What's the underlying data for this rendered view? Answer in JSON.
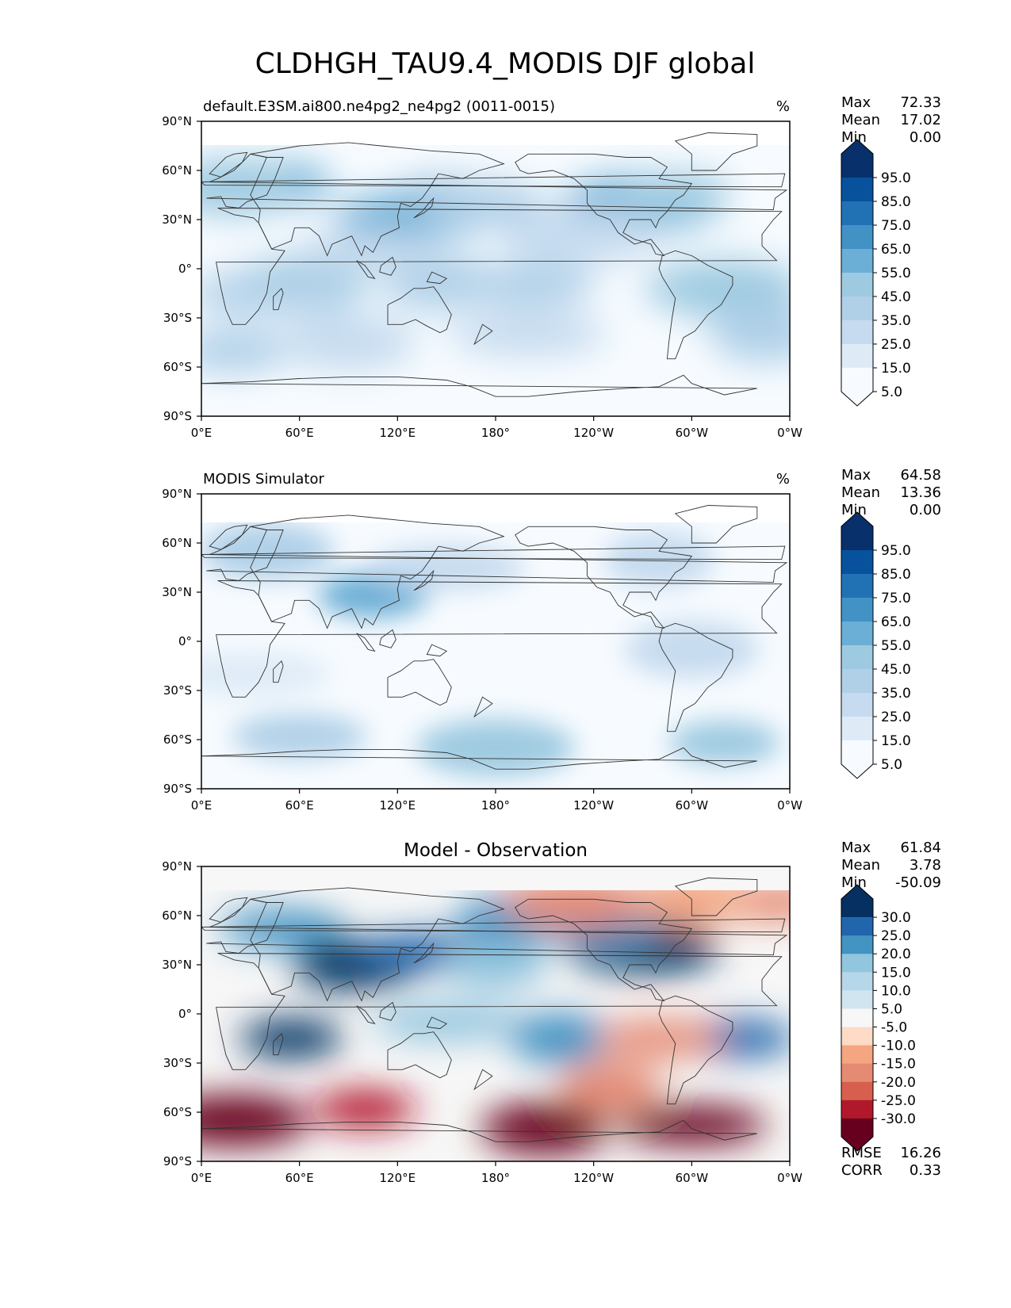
{
  "title": "CLDHGH_TAU9.4_MODIS DJF global",
  "colors": {
    "blues": [
      "#f7fbff",
      "#deebf7",
      "#c6dbef",
      "#b0d0e8",
      "#9ecae1",
      "#6baed6",
      "#4292c6",
      "#2171b5",
      "#08519c",
      "#08306b"
    ],
    "diff": [
      "#67001f",
      "#b2182b",
      "#d6604d",
      "#e58a73",
      "#f4a582",
      "#fddbc7",
      "#f7f7f7",
      "#d1e5f0",
      "#b6d6ea",
      "#92c5de",
      "#4393c3",
      "#2166ac",
      "#053061"
    ],
    "land_outline": "#333333"
  },
  "chart_data": [
    {
      "type": "heatmap",
      "panel": "test",
      "title_left": "default.E3SM.ai800.ne4pg2_ne4pg2 (0011-0015)",
      "units": "%",
      "stats": {
        "max_label": "Max",
        "max": "72.33",
        "mean_label": "Mean",
        "mean": "17.02",
        "min_label": "Min",
        "min": "0.00"
      },
      "levels": [
        "95.0",
        "85.0",
        "75.0",
        "65.0",
        "55.0",
        "45.0",
        "35.0",
        "25.0",
        "15.0",
        "5.0"
      ],
      "x_ticks": [
        "0°E",
        "60°E",
        "120°E",
        "180°",
        "120°W",
        "60°W",
        "0°W"
      ],
      "y_ticks": [
        "90°N",
        "60°N",
        "30°N",
        "0°",
        "30°S",
        "60°S",
        "90°S"
      ],
      "xlim": [
        0,
        360
      ],
      "ylim": [
        -90,
        90
      ],
      "regions": [
        {
          "lon": 45,
          "lat": 52,
          "value": 50
        },
        {
          "lon": 20,
          "lat": 50,
          "value": 35
        },
        {
          "lon": 130,
          "lat": 32,
          "value": 45
        },
        {
          "lon": 150,
          "lat": 38,
          "value": 45
        },
        {
          "lon": 170,
          "lat": 40,
          "value": 32
        },
        {
          "lon": 270,
          "lat": 40,
          "value": 45
        },
        {
          "lon": 290,
          "lat": 45,
          "value": 35
        },
        {
          "lon": 60,
          "lat": -10,
          "value": 35
        },
        {
          "lon": 40,
          "lat": -15,
          "value": 25
        },
        {
          "lon": 145,
          "lat": -8,
          "value": 25
        },
        {
          "lon": 200,
          "lat": -10,
          "value": 30
        },
        {
          "lon": 320,
          "lat": -12,
          "value": 40
        },
        {
          "lon": 20,
          "lat": -50,
          "value": 25
        },
        {
          "lon": 90,
          "lat": -45,
          "value": 20
        },
        {
          "lon": 200,
          "lat": -40,
          "value": 20
        },
        {
          "lon": 345,
          "lat": -40,
          "value": 25
        },
        {
          "lon": 100,
          "lat": 10,
          "value": 15
        },
        {
          "lon": 230,
          "lat": 20,
          "value": 15
        }
      ]
    },
    {
      "type": "heatmap",
      "panel": "reference",
      "title_left": "MODIS Simulator",
      "units": "%",
      "stats": {
        "max_label": "Max",
        "max": "64.58",
        "mean_label": "Mean",
        "mean": "13.36",
        "min_label": "Min",
        "min": "0.00"
      },
      "levels": [
        "95.0",
        "85.0",
        "75.0",
        "65.0",
        "55.0",
        "45.0",
        "35.0",
        "25.0",
        "15.0",
        "5.0"
      ],
      "x_ticks": [
        "0°E",
        "60°E",
        "120°E",
        "180°",
        "120°W",
        "60°W",
        "0°W"
      ],
      "y_ticks": [
        "90°N",
        "60°N",
        "30°N",
        "0°",
        "30°S",
        "60°S",
        "90°S"
      ],
      "xlim": [
        0,
        360
      ],
      "ylim": [
        -90,
        90
      ],
      "regions": [
        {
          "lon": 105,
          "lat": 28,
          "value": 45
        },
        {
          "lon": 40,
          "lat": 55,
          "value": 25
        },
        {
          "lon": 150,
          "lat": 45,
          "value": 20
        },
        {
          "lon": 280,
          "lat": 50,
          "value": 20
        },
        {
          "lon": 60,
          "lat": -58,
          "value": 30
        },
        {
          "lon": 180,
          "lat": -65,
          "value": 35
        },
        {
          "lon": 320,
          "lat": -62,
          "value": 35
        },
        {
          "lon": 300,
          "lat": -5,
          "value": 15
        },
        {
          "lon": 30,
          "lat": -20,
          "value": 12
        }
      ]
    },
    {
      "type": "heatmap",
      "panel": "difference",
      "title_center": "Model - Observation",
      "stats": {
        "max_label": "Max",
        "max": "61.84",
        "mean_label": "Mean",
        "mean": "3.78",
        "min_label": "Min",
        "min": "-50.09"
      },
      "levels": [
        "30.0",
        "25.0",
        "20.0",
        "15.0",
        "10.0",
        "5.0",
        "-5.0",
        "-10.0",
        "-15.0",
        "-20.0",
        "-25.0",
        "-30.0"
      ],
      "metrics": {
        "rmse_label": "RMSE",
        "rmse": "16.26",
        "corr_label": "CORR",
        "corr": "0.33"
      },
      "x_ticks": [
        "0°E",
        "60°E",
        "120°E",
        "180°",
        "120°W",
        "60°W",
        "0°W"
      ],
      "y_ticks": [
        "90°N",
        "60°N",
        "30°N",
        "0°",
        "30°S",
        "60°S",
        "90°S"
      ],
      "xlim": [
        0,
        360
      ],
      "ylim": [
        -90,
        90
      ],
      "regions": [
        {
          "lon": 55,
          "lat": -15,
          "value": 35
        },
        {
          "lon": 95,
          "lat": 30,
          "value": 32
        },
        {
          "lon": 140,
          "lat": 38,
          "value": 30
        },
        {
          "lon": 180,
          "lat": 30,
          "value": 20
        },
        {
          "lon": 50,
          "lat": 52,
          "value": 25
        },
        {
          "lon": 270,
          "lat": 40,
          "value": 32
        },
        {
          "lon": 250,
          "lat": 50,
          "value": 22
        },
        {
          "lon": 195,
          "lat": 58,
          "value": 25
        },
        {
          "lon": 150,
          "lat": -5,
          "value": 20
        },
        {
          "lon": 220,
          "lat": -15,
          "value": 25
        },
        {
          "lon": 325,
          "lat": -15,
          "value": 30
        },
        {
          "lon": 20,
          "lat": -65,
          "value": -35
        },
        {
          "lon": 100,
          "lat": -58,
          "value": -25
        },
        {
          "lon": 210,
          "lat": -70,
          "value": -40
        },
        {
          "lon": 300,
          "lat": -68,
          "value": -35
        },
        {
          "lon": 250,
          "lat": -45,
          "value": -15
        },
        {
          "lon": 280,
          "lat": -15,
          "value": -15
        },
        {
          "lon": 230,
          "lat": 68,
          "value": -15
        },
        {
          "lon": 350,
          "lat": 68,
          "value": -15
        },
        {
          "lon": 300,
          "lat": 70,
          "value": -10
        }
      ]
    }
  ]
}
